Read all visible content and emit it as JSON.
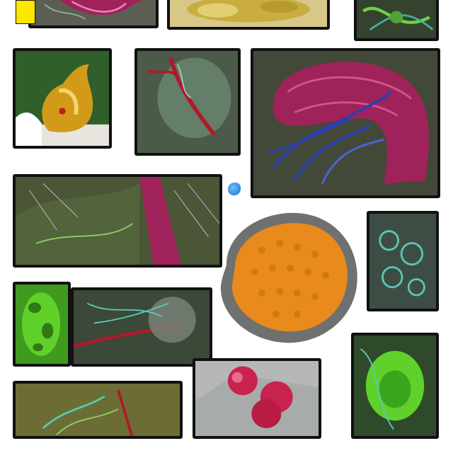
{
  "badge": {
    "text": ""
  },
  "footer": {
    "left_text": "",
    "center_text": "",
    "right_text": ""
  },
  "colors": {
    "background": "#ffffff",
    "tile_border": "#111111",
    "accent_yellow": "#ffe600",
    "magenta_tissue": "#a0225a",
    "orange_cell": "#e88a1c",
    "green_tissue": "#5fd12a",
    "blue_vessel": "#2b3fb0"
  }
}
